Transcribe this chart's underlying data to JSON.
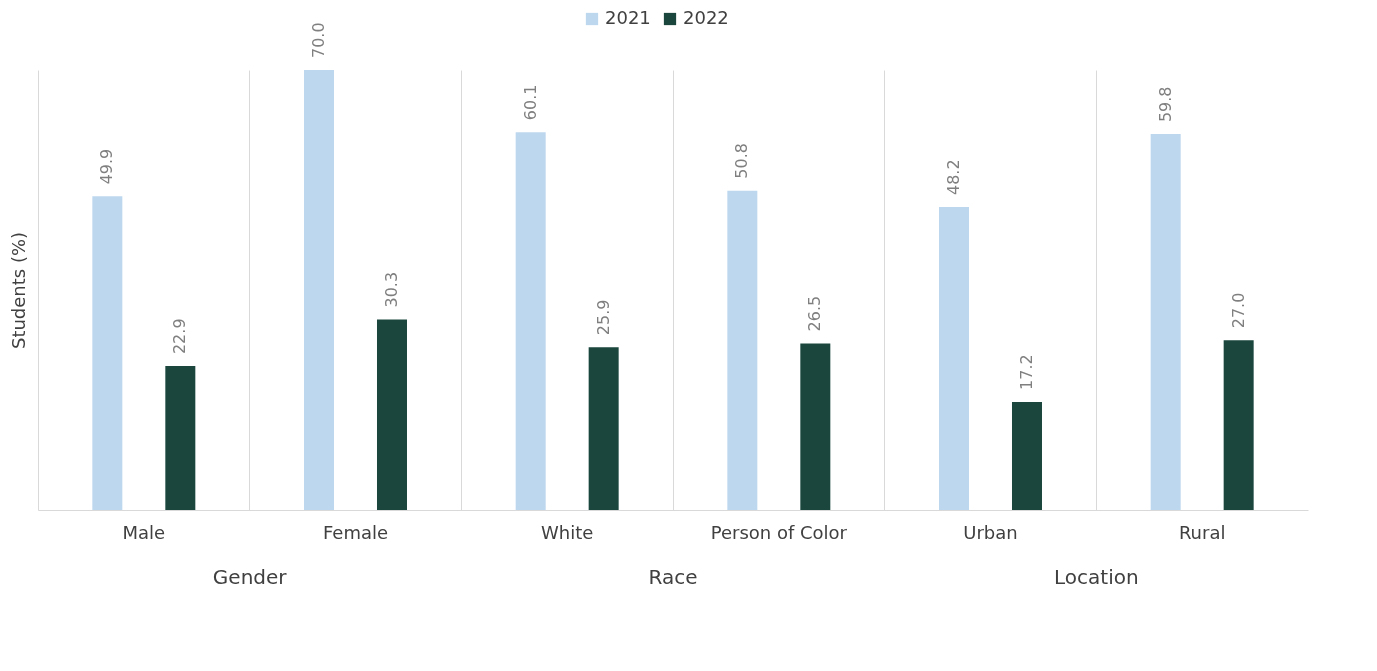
{
  "chart_data": {
    "type": "bar",
    "ylabel": "Students (%)",
    "categories": [
      "Male",
      "Female",
      "White",
      "Person of Color",
      "Urban",
      "Rural"
    ],
    "series": [
      {
        "name": "2021",
        "color": "#bdd7ee",
        "values": [
          49.9,
          70.0,
          60.1,
          50.8,
          48.2,
          59.8
        ],
        "value_labels": [
          "49.9",
          "70.0",
          "60.1",
          "50.8",
          "48.2",
          "59.8"
        ]
      },
      {
        "name": "2022",
        "color": "#1a463d",
        "values": [
          22.9,
          30.3,
          25.9,
          26.5,
          17.2,
          27.0
        ],
        "value_labels": [
          "22.9",
          "30.3",
          "25.9",
          "26.5",
          "17.2",
          "27.0"
        ]
      }
    ],
    "grid": "x",
    "legend": "top",
    "annotations": [
      "Gender",
      "Race",
      "Location"
    ]
  }
}
